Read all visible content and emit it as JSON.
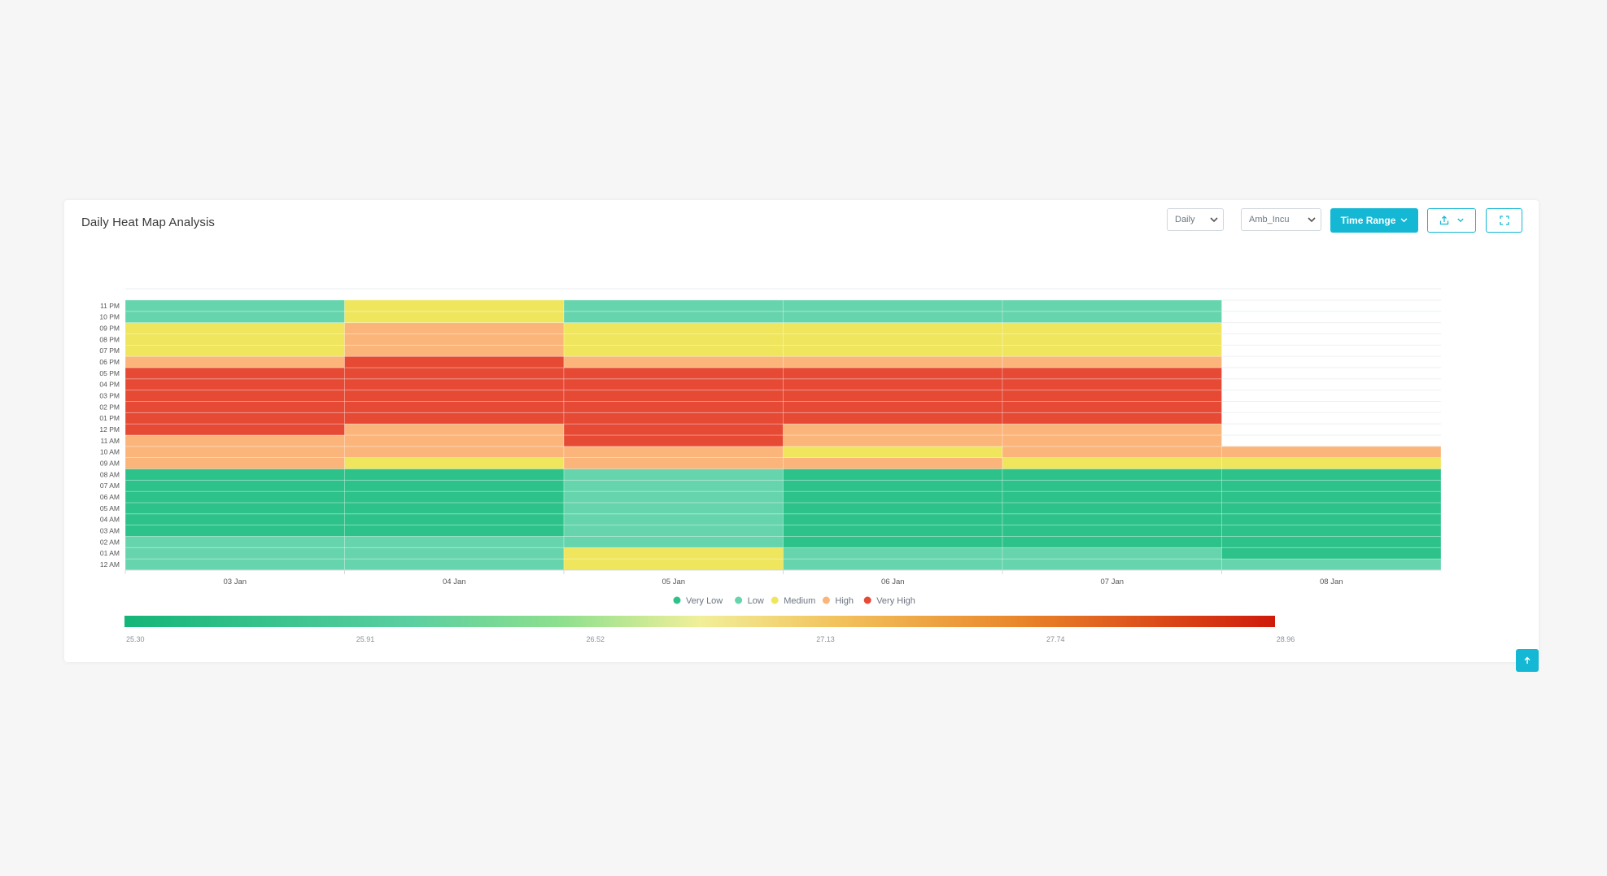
{
  "card": {
    "title": "Daily Heat Map Analysis",
    "period_select": "Daily",
    "tag_select": "Amb_Incu",
    "time_range_label": "Time Range"
  },
  "icons": {
    "period_chevron": "chevron-down-icon",
    "tag_chevron": "chevron-down-icon",
    "time_range_chevron": "chevron-down-icon",
    "export": "export-icon",
    "fullscreen": "fullscreen-icon",
    "scroll_top": "arrow-up-icon"
  },
  "colors": {
    "accent": "#14b8d4",
    "very_low": "#2ec28b",
    "low": "#66d5ad",
    "medium": "#efe65e",
    "high": "#fbb57b",
    "very_high": "#e64a35"
  },
  "chart_data": {
    "type": "heatmap",
    "title": "",
    "xlabel": "",
    "ylabel": "",
    "x": [
      "03 Jan",
      "04 Jan",
      "05 Jan",
      "06 Jan",
      "07 Jan",
      "08 Jan"
    ],
    "y": [
      "12 AM",
      "01 AM",
      "02 AM",
      "03 AM",
      "04 AM",
      "05 AM",
      "06 AM",
      "07 AM",
      "08 AM",
      "09 AM",
      "10 AM",
      "11 AM",
      "12 PM",
      "01 PM",
      "02 PM",
      "03 PM",
      "04 PM",
      "05 PM",
      "06 PM",
      "07 PM",
      "08 PM",
      "09 PM",
      "10 PM",
      "11 PM"
    ],
    "level_names": [
      "Very Low",
      "Low",
      "Medium",
      "High",
      "Very High"
    ],
    "levels_by_day": [
      [
        "Low",
        "Low",
        "Low",
        "Very Low",
        "Very Low",
        "Very Low",
        "Very Low",
        "Very Low",
        "Very Low",
        "High",
        "High",
        "High",
        "Very High",
        "Very High",
        "Very High",
        "Very High",
        "Very High",
        "Very High",
        "High",
        "Medium",
        "Medium",
        "Medium",
        "Low",
        "Low"
      ],
      [
        "Low",
        "Low",
        "Low",
        "Very Low",
        "Very Low",
        "Very Low",
        "Very Low",
        "Very Low",
        "Very Low",
        "Medium",
        "High",
        "High",
        "High",
        "Very High",
        "Very High",
        "Very High",
        "Very High",
        "Very High",
        "Very High",
        "High",
        "High",
        "High",
        "Medium",
        "Medium"
      ],
      [
        "Medium",
        "Medium",
        "Low",
        "Low",
        "Low",
        "Low",
        "Low",
        "Low",
        "Low",
        "High",
        "High",
        "Very High",
        "Very High",
        "Very High",
        "Very High",
        "Very High",
        "Very High",
        "Very High",
        "High",
        "Medium",
        "Medium",
        "Medium",
        "Low",
        "Low"
      ],
      [
        "Low",
        "Low",
        "Very Low",
        "Very Low",
        "Very Low",
        "Very Low",
        "Very Low",
        "Very Low",
        "Very Low",
        "High",
        "Medium",
        "High",
        "High",
        "Very High",
        "Very High",
        "Very High",
        "Very High",
        "Very High",
        "High",
        "Medium",
        "Medium",
        "Medium",
        "Low",
        "Low"
      ],
      [
        "Low",
        "Low",
        "Very Low",
        "Very Low",
        "Very Low",
        "Very Low",
        "Very Low",
        "Very Low",
        "Very Low",
        "Medium",
        "High",
        "High",
        "High",
        "Very High",
        "Very High",
        "Very High",
        "Very High",
        "Very High",
        "High",
        "Medium",
        "Medium",
        "Medium",
        "Low",
        "Low"
      ],
      [
        "Low",
        "Very Low",
        "Very Low",
        "Very Low",
        "Very Low",
        "Very Low",
        "Very Low",
        "Very Low",
        "Very Low",
        "Medium",
        "High",
        null,
        null,
        null,
        null,
        null,
        null,
        null,
        null,
        null,
        null,
        null,
        null,
        null
      ]
    ],
    "color_scale": {
      "ticks": [
        "25.30",
        "25.91",
        "26.52",
        "27.13",
        "27.74",
        "28.96"
      ],
      "min": 25.3,
      "max": 28.96
    },
    "legend": [
      "Very Low",
      "Low",
      "Medium",
      "High",
      "Very High"
    ],
    "legend_position": "bottom"
  }
}
